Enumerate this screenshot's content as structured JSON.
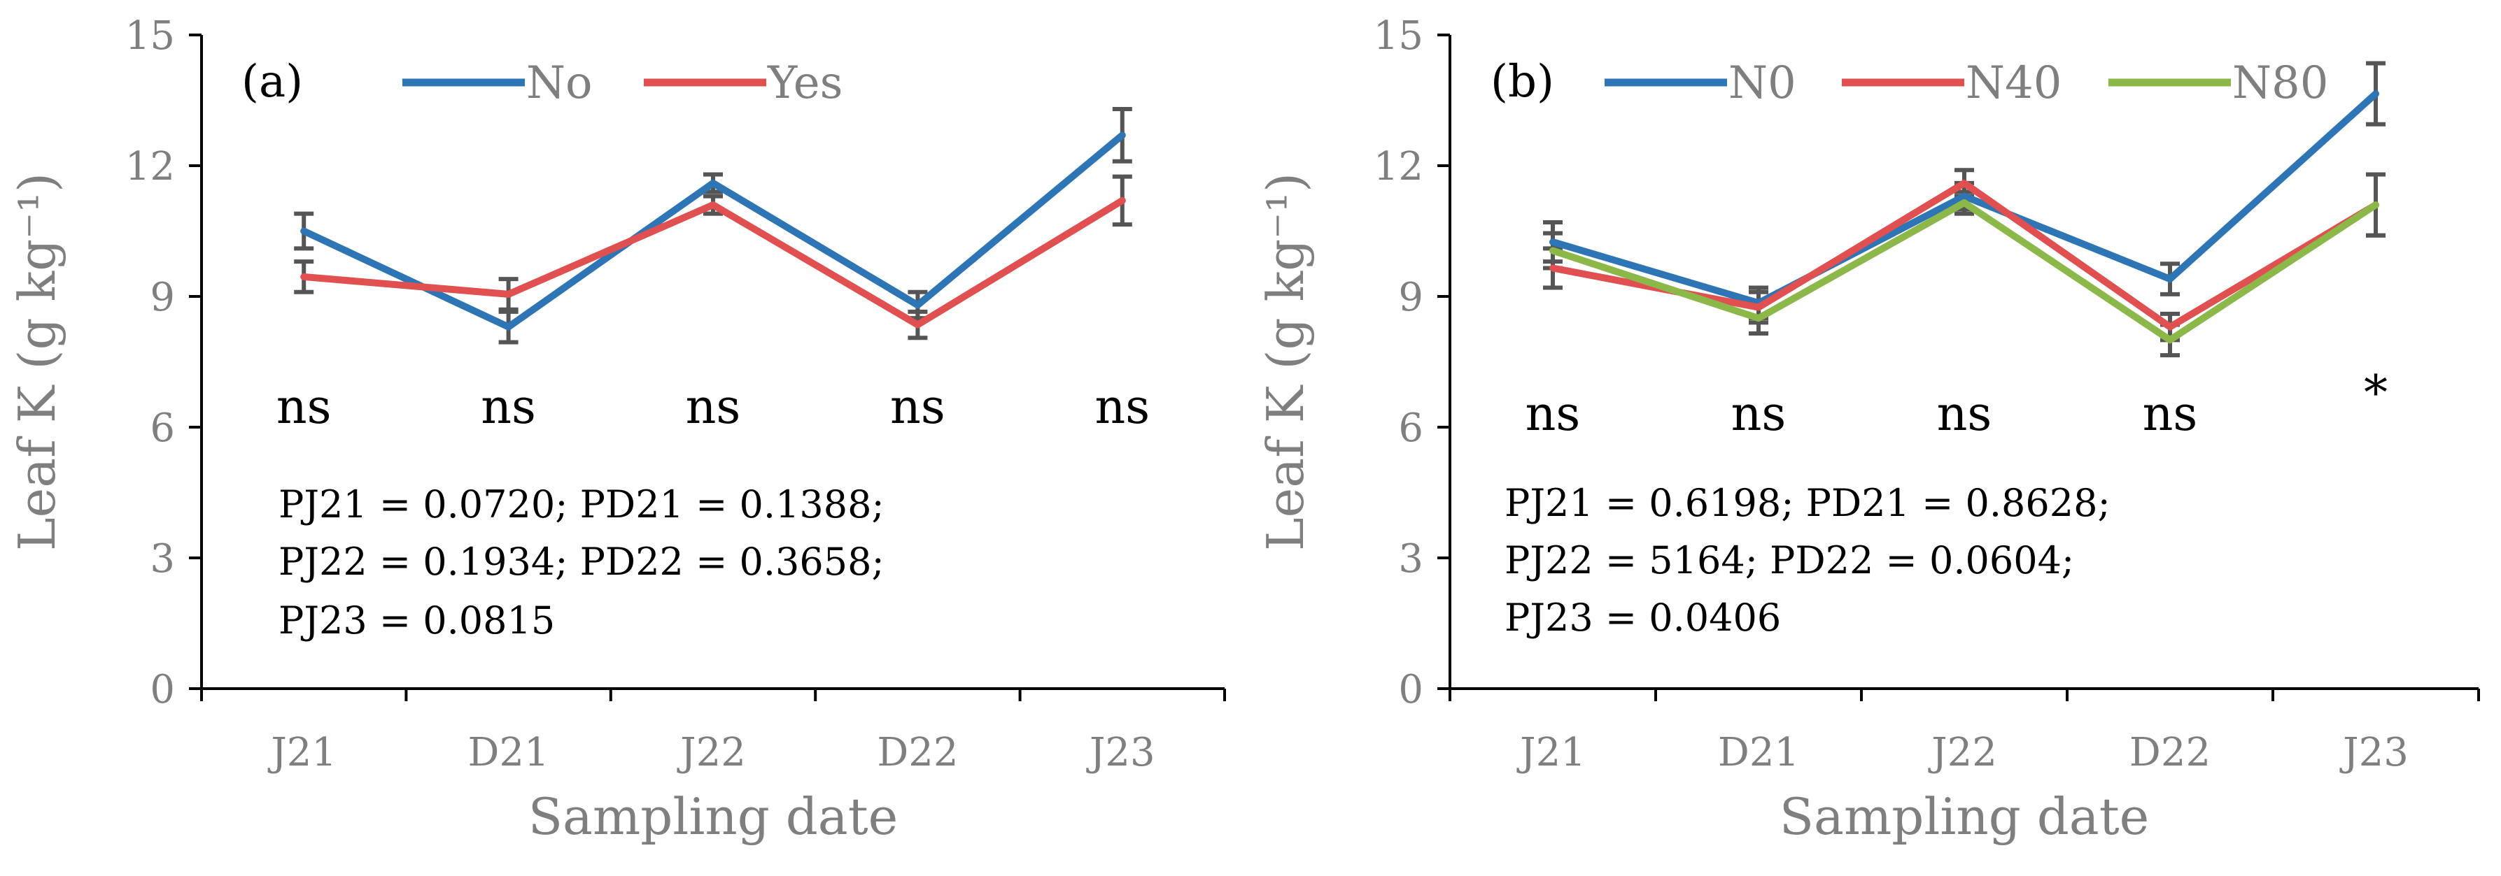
{
  "chart_data": [
    {
      "panel": "(a)",
      "type": "line",
      "ylabel": "Leaf K (g kg⁻¹)",
      "xlabel": "Sampling date",
      "categories": [
        "J21",
        "D21",
        "J22",
        "D22",
        "J23"
      ],
      "ylim": [
        0,
        15
      ],
      "yticks": [
        "0",
        "3",
        "6",
        "9",
        "12",
        "15"
      ],
      "legend": [
        "No",
        "Yes"
      ],
      "series": [
        {
          "name": "No",
          "color": "#2e75b6",
          "values": [
            10.5,
            8.3,
            11.6,
            8.8,
            12.7
          ],
          "errors": [
            0.4,
            0.35,
            0.2,
            0.3,
            0.6
          ]
        },
        {
          "name": "Yes",
          "color": "#e05050",
          "values": [
            9.45,
            9.05,
            11.1,
            8.35,
            11.2
          ],
          "errors": [
            0.35,
            0.35,
            0.2,
            0.3,
            0.55
          ]
        }
      ],
      "significance": [
        "ns",
        "ns",
        "ns",
        "ns",
        "ns"
      ],
      "stats": [
        "PJ21 = 0.0720; PD21 = 0.1388;",
        "PJ22 = 0.1934; PD22 = 0.3658;",
        "PJ23 = 0.0815"
      ]
    },
    {
      "panel": "(b)",
      "type": "line",
      "ylabel": "Leaf K (g kg⁻¹)",
      "xlabel": "Sampling date",
      "categories": [
        "J21",
        "D21",
        "J22",
        "D22",
        "J23"
      ],
      "ylim": [
        0,
        15
      ],
      "yticks": [
        "0",
        "3",
        "6",
        "9",
        "12",
        "15"
      ],
      "legend": [
        "N0",
        "N40",
        "N80"
      ],
      "series": [
        {
          "name": "N0",
          "color": "#2e75b6",
          "values": [
            10.25,
            8.85,
            11.3,
            9.4,
            13.65
          ],
          "errors": [
            0.45,
            0.35,
            0.3,
            0.35,
            0.7
          ]
        },
        {
          "name": "N40",
          "color": "#e05050",
          "values": [
            9.65,
            8.75,
            11.6,
            8.3,
            11.1
          ],
          "errors": [
            0.45,
            0.35,
            0.3,
            0.3,
            0.7
          ]
        },
        {
          "name": "N80",
          "color": "#8cb84a",
          "values": [
            10.05,
            8.5,
            11.15,
            8.0,
            11.1
          ],
          "errors": [
            0.4,
            0.35,
            0.25,
            0.35,
            0.7
          ]
        }
      ],
      "significance": [
        "ns",
        "ns",
        "ns",
        "ns",
        "*"
      ],
      "stats": [
        "PJ21 = 0.6198; PD21 = 0.8628;",
        "PJ22 = 5164; PD22 = 0.0604;",
        "PJ23 = 0.0406"
      ]
    }
  ]
}
